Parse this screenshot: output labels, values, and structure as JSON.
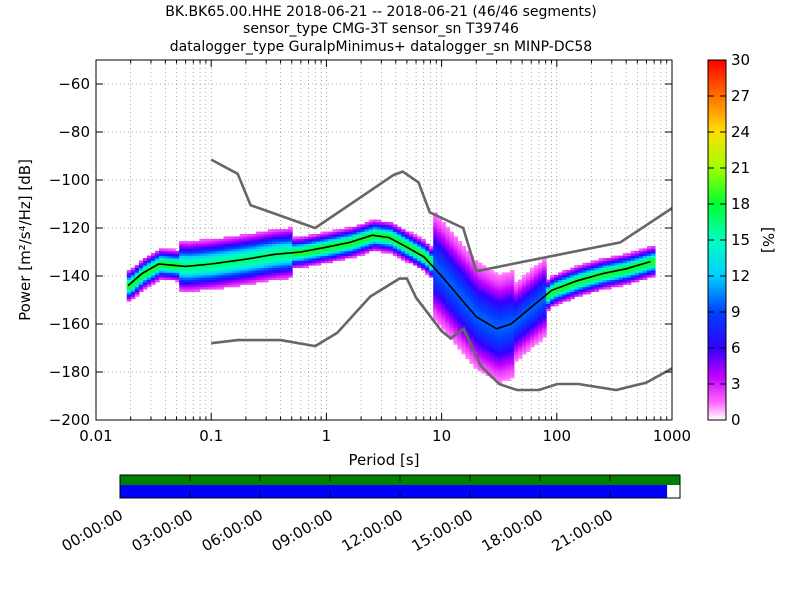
{
  "title_lines": [
    "BK.BK65.00.HHE   2018-06-21 -- 2018-06-21  (46/46 segments)",
    "sensor_type CMG-3T sensor_sn T39746",
    "datalogger_type GuralpMinimus+ datalogger_sn MINP-DC58"
  ],
  "chart_data": {
    "type": "heatmap",
    "xlabel": "Period [s]",
    "ylabel": "Power [m²/s⁴/Hz] [dB]",
    "xscale": "log",
    "xlim": [
      0.01,
      1000
    ],
    "ylim": [
      -200,
      -50
    ],
    "x_ticks": [
      0.01,
      0.1,
      1,
      10,
      100,
      1000
    ],
    "x_tick_labels": [
      "0.01",
      "0.1",
      "1",
      "10",
      "100",
      "1000"
    ],
    "y_ticks": [
      -200,
      -180,
      -160,
      -140,
      -120,
      -100,
      -80,
      -60
    ],
    "y_tick_labels": [
      "−200",
      "−180",
      "−160",
      "−140",
      "−120",
      "−100",
      "−80",
      "−60"
    ],
    "grid": true,
    "colorbar": {
      "label": "[%]",
      "range": [
        0,
        30
      ],
      "ticks": [
        "0",
        "3",
        "6",
        "9",
        "12",
        "15",
        "18",
        "21",
        "24",
        "27",
        "30"
      ]
    },
    "mode_curve": [
      [
        0.019,
        -144
      ],
      [
        0.025,
        -139
      ],
      [
        0.035,
        -135
      ],
      [
        0.06,
        -136
      ],
      [
        0.1,
        -135
      ],
      [
        0.2,
        -133
      ],
      [
        0.35,
        -131
      ],
      [
        0.6,
        -130
      ],
      [
        1.0,
        -128
      ],
      [
        1.6,
        -126
      ],
      [
        2.5,
        -123
      ],
      [
        3.5,
        -124
      ],
      [
        5.0,
        -128
      ],
      [
        7.0,
        -132
      ],
      [
        10.0,
        -140
      ],
      [
        15.0,
        -150
      ],
      [
        20.0,
        -157
      ],
      [
        30.0,
        -162
      ],
      [
        40.0,
        -160
      ],
      [
        60.0,
        -153
      ],
      [
        90.0,
        -146
      ],
      [
        150.0,
        -142
      ],
      [
        250.0,
        -139
      ],
      [
        400.0,
        -137
      ],
      [
        650.0,
        -134
      ]
    ],
    "nhnm": [
      [
        0.1,
        -91.5
      ],
      [
        0.17,
        -97.4
      ],
      [
        0.22,
        -110.5
      ],
      [
        0.8,
        -120.0
      ],
      [
        3.8,
        -98.0
      ],
      [
        4.6,
        -96.5
      ],
      [
        6.3,
        -101.0
      ],
      [
        7.9,
        -113.5
      ],
      [
        15.4,
        -120.0
      ],
      [
        20.0,
        -138.0
      ],
      [
        354.8,
        -126.0
      ],
      [
        10000,
        -80.1
      ]
    ],
    "nlnm": [
      [
        0.1,
        -168.0
      ],
      [
        0.17,
        -166.7
      ],
      [
        0.4,
        -166.7
      ],
      [
        0.8,
        -169.2
      ],
      [
        1.24,
        -163.7
      ],
      [
        2.4,
        -148.6
      ],
      [
        4.3,
        -141.1
      ],
      [
        5.0,
        -141.1
      ],
      [
        6.0,
        -149.0
      ],
      [
        10.0,
        -163.0
      ],
      [
        12.0,
        -166.0
      ],
      [
        15.6,
        -162.0
      ],
      [
        21.9,
        -177.5
      ],
      [
        31.6,
        -185.0
      ],
      [
        45.0,
        -187.5
      ],
      [
        70.0,
        -187.5
      ],
      [
        101.0,
        -185.0
      ],
      [
        154.0,
        -185.0
      ],
      [
        328.0,
        -187.5
      ],
      [
        600.0,
        -184.4
      ],
      [
        1000,
        -178.5
      ]
    ]
  },
  "time_axis": {
    "labels": [
      "00:00:00",
      "03:00:00",
      "06:00:00",
      "09:00:00",
      "12:00:00",
      "15:00:00",
      "18:00:00",
      "21:00:00"
    ],
    "colors": {
      "data_bar": "#008000",
      "gap_bar": "#0000ff"
    },
    "data_coverage_fraction": 1.0,
    "gap_bar_fraction": 0.977
  }
}
